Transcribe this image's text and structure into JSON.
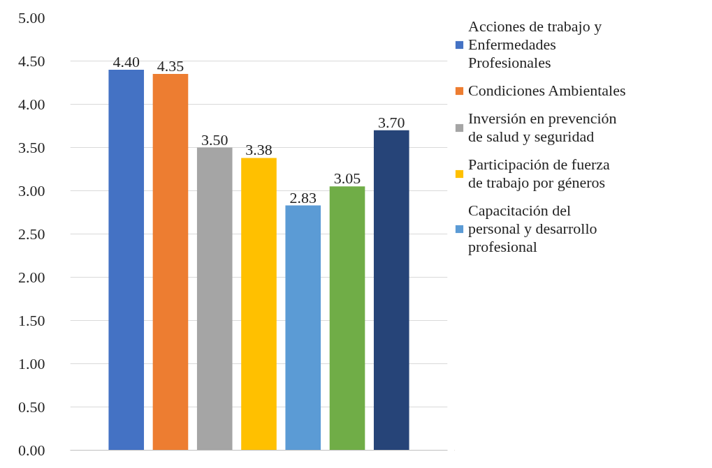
{
  "chart_data": {
    "type": "bar",
    "categories": [
      null
    ],
    "series": [
      {
        "name": "Acciones de trabajo y Enfermedades Profesionales",
        "color": "#4472c4",
        "values": [
          4.4
        ]
      },
      {
        "name": "Condiciones Ambientales",
        "color": "#ed7d31",
        "values": [
          4.35
        ]
      },
      {
        "name": "Inversión en prevención de salud y seguridad",
        "color": "#a5a5a5",
        "values": [
          3.5
        ]
      },
      {
        "name": "Participación de fuerza de trabajo por géneros",
        "color": "#ffc000",
        "values": [
          3.38
        ]
      },
      {
        "name": "Capacitación del personal y desarrollo profesional",
        "color": "#5b9bd5",
        "values": [
          2.83
        ]
      },
      {
        "color": "#70ad47",
        "values": [
          3.05
        ]
      },
      {
        "color": "#264478",
        "values": [
          3.7
        ]
      }
    ],
    "ylim": [
      0,
      5
    ],
    "yticks": [
      {
        "value": 0,
        "label": "0.00"
      },
      {
        "value": 0.5,
        "label": "0.50"
      },
      {
        "value": 1,
        "label": "1.00"
      },
      {
        "value": 1.5,
        "label": "1.50"
      },
      {
        "value": 2,
        "label": "2.00"
      },
      {
        "value": 2.5,
        "label": "2.50"
      },
      {
        "value": 3,
        "label": "3.00"
      },
      {
        "value": 3.5,
        "label": "3.50"
      },
      {
        "value": 4,
        "label": "4.00"
      },
      {
        "value": 4.5,
        "label": "4.50"
      },
      {
        "value": 5,
        "label": "5.00"
      }
    ],
    "grid": "y",
    "legend": "right",
    "value_labels": [
      "4.40",
      "4.35",
      "3.50",
      "3.38",
      "2.83",
      "3.05",
      "3.70"
    ]
  }
}
